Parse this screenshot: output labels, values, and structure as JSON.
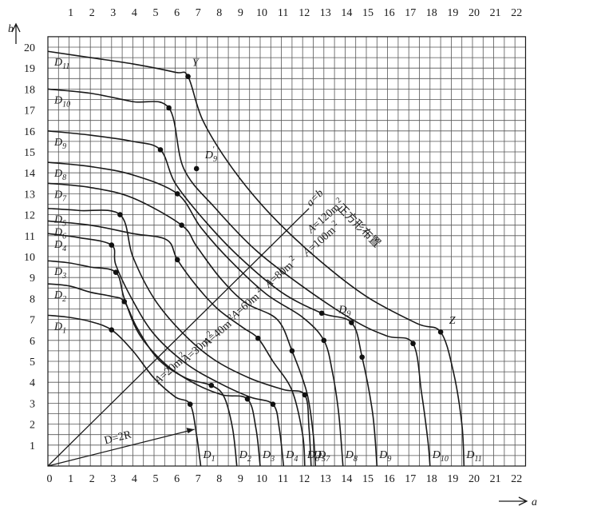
{
  "chart_data": {
    "type": "diagram",
    "x_axis": {
      "label": "a",
      "ticks": [
        "0",
        "1",
        "2",
        "3",
        "4",
        "5",
        "6",
        "7",
        "8",
        "9",
        "10",
        "11",
        "12",
        "13",
        "14",
        "15",
        "16",
        "17",
        "18",
        "19",
        "20",
        "21",
        "22"
      ]
    },
    "top_axis": {
      "ticks": [
        "1",
        "2",
        "3",
        "4",
        "5",
        "6",
        "7",
        "8",
        "9",
        "10",
        "11",
        "12",
        "13",
        "14",
        "15",
        "16",
        "17",
        "18",
        "19",
        "20",
        "21",
        "22"
      ]
    },
    "y_axis": {
      "label": "b",
      "ticks": [
        "1",
        "2",
        "3",
        "4",
        "5",
        "6",
        "7",
        "8",
        "9",
        "10",
        "11",
        "12",
        "13",
        "14",
        "15",
        "16",
        "17",
        "18",
        "19",
        "20"
      ]
    },
    "curves": [
      {
        "name": "D1",
        "sub": "1",
        "points": [
          [
            0,
            7.2
          ],
          [
            1,
            7.1
          ],
          [
            2,
            6.9
          ],
          [
            3,
            6.5
          ],
          [
            4,
            5.5
          ],
          [
            5,
            4.2
          ],
          [
            6,
            3.3
          ],
          [
            6.7,
            2.95
          ],
          [
            7,
            1.5
          ],
          [
            7.2,
            0
          ]
        ]
      },
      {
        "name": "D2",
        "sub": "2",
        "points": [
          [
            0,
            8.7
          ],
          [
            1,
            8.6
          ],
          [
            2,
            8.3
          ],
          [
            3,
            8.1
          ],
          [
            3.6,
            7.85
          ],
          [
            4.2,
            6.6
          ],
          [
            5.2,
            5.1
          ],
          [
            6.5,
            4.2
          ],
          [
            7.7,
            3.85
          ],
          [
            8.3,
            3.3
          ],
          [
            8.7,
            1.8
          ],
          [
            8.9,
            0
          ]
        ]
      },
      {
        "name": "D3",
        "sub": "3",
        "points": [
          [
            0,
            9.8
          ],
          [
            1,
            9.7
          ],
          [
            2,
            9.5
          ],
          [
            3.2,
            9.25
          ],
          [
            3.6,
            8.0
          ],
          [
            4.3,
            6.3
          ],
          [
            5.5,
            4.9
          ],
          [
            6.8,
            4.0
          ],
          [
            8.2,
            3.4
          ],
          [
            9.4,
            3.2
          ],
          [
            9.8,
            1.8
          ],
          [
            10,
            0
          ]
        ]
      },
      {
        "name": "D4",
        "sub": "4",
        "points": [
          [
            0,
            11.1
          ],
          [
            1.5,
            10.9
          ],
          [
            3,
            10.55
          ],
          [
            3.2,
            9.6
          ],
          [
            4.0,
            7.9
          ],
          [
            5.0,
            6.3
          ],
          [
            6.5,
            4.9
          ],
          [
            8.0,
            4.0
          ],
          [
            9.5,
            3.3
          ],
          [
            10.6,
            2.95
          ],
          [
            10.9,
            1.8
          ],
          [
            11.1,
            0
          ]
        ]
      },
      {
        "name": "D5",
        "sub": "5",
        "points": [
          [
            0,
            12.3
          ],
          [
            1.5,
            12.2
          ],
          [
            3.4,
            12.0
          ],
          [
            4.0,
            10.0
          ],
          [
            5.0,
            8.0
          ],
          [
            6.3,
            6.4
          ],
          [
            7.8,
            5.1
          ],
          [
            9.5,
            4.2
          ],
          [
            11.1,
            3.65
          ],
          [
            12.1,
            3.4
          ],
          [
            12.3,
            1.8
          ],
          [
            12.4,
            0
          ]
        ]
      },
      {
        "name": "D6",
        "sub": "6",
        "points": [
          [
            0,
            11.7
          ],
          [
            2,
            11.5
          ],
          [
            4,
            11.1
          ],
          [
            5.6,
            10.8
          ],
          [
            6.1,
            9.85
          ],
          [
            7.0,
            8.6
          ],
          [
            8.0,
            7.5
          ],
          [
            9.2,
            6.6
          ],
          [
            9.9,
            6.1
          ],
          [
            10.6,
            5.0
          ],
          [
            11.5,
            3.6
          ],
          [
            12.0,
            1.5
          ],
          [
            12.1,
            0
          ]
        ]
      },
      {
        "name": "D7",
        "sub": "7",
        "points": [
          [
            0,
            13.5
          ],
          [
            2,
            13.3
          ],
          [
            4,
            12.8
          ],
          [
            6.3,
            11.5
          ],
          [
            7.0,
            10.5
          ],
          [
            8.1,
            9.0
          ],
          [
            9.3,
            7.8
          ],
          [
            10.8,
            7.0
          ],
          [
            11.5,
            5.5
          ],
          [
            12.2,
            3.5
          ],
          [
            12.5,
            1.5
          ],
          [
            12.6,
            0
          ]
        ]
      },
      {
        "name": "D8",
        "sub": "8",
        "points": [
          [
            0,
            14.5
          ],
          [
            2,
            14.3
          ],
          [
            4,
            13.9
          ],
          [
            6.1,
            13.0
          ],
          [
            7.2,
            11.4
          ],
          [
            8.6,
            9.8
          ],
          [
            10.3,
            8.2
          ],
          [
            12.0,
            7.1
          ],
          [
            13.0,
            6.0
          ],
          [
            13.4,
            4.5
          ],
          [
            13.7,
            2.5
          ],
          [
            13.9,
            0
          ]
        ]
      },
      {
        "name": "D9",
        "sub": "9",
        "points": [
          [
            0,
            16.0
          ],
          [
            2,
            15.8
          ],
          [
            4,
            15.5
          ],
          [
            5.3,
            15.1
          ],
          [
            6.0,
            13.5
          ],
          [
            7.4,
            11.7
          ],
          [
            9.0,
            10.0
          ],
          [
            11.0,
            8.3
          ],
          [
            12.9,
            7.3
          ],
          [
            14.3,
            6.85
          ],
          [
            14.8,
            5.2
          ],
          [
            15.3,
            2.5
          ],
          [
            15.5,
            0
          ]
        ]
      },
      {
        "name": "D10",
        "sub": "10",
        "points": [
          [
            0,
            18.0
          ],
          [
            2,
            17.8
          ],
          [
            4,
            17.4
          ],
          [
            5.7,
            17.1
          ],
          [
            6.4,
            14.2
          ],
          [
            7.9,
            12.3
          ],
          [
            9.8,
            10.3
          ],
          [
            12.1,
            8.5
          ],
          [
            14.5,
            6.9
          ],
          [
            16.0,
            6.2
          ],
          [
            17.2,
            5.85
          ],
          [
            17.6,
            3.5
          ],
          [
            17.9,
            1.2
          ],
          [
            18.0,
            0
          ]
        ]
      },
      {
        "name": "D11",
        "sub": "11",
        "points": [
          [
            0,
            19.8
          ],
          [
            2,
            19.5
          ],
          [
            4,
            19.2
          ],
          [
            6.0,
            18.8
          ],
          [
            6.6,
            18.6
          ],
          [
            7.3,
            16.5
          ],
          [
            8.7,
            14.2
          ],
          [
            10.5,
            12.0
          ],
          [
            12.7,
            9.9
          ],
          [
            15.0,
            8.1
          ],
          [
            17.4,
            6.8
          ],
          [
            18.5,
            6.4
          ],
          [
            19.1,
            4.5
          ],
          [
            19.5,
            2.0
          ],
          [
            19.6,
            0
          ]
        ]
      }
    ],
    "markers": [
      [
        3,
        6.5
      ],
      [
        6.7,
        2.95
      ],
      [
        3.6,
        7.85
      ],
      [
        7.7,
        3.85
      ],
      [
        3.2,
        9.25
      ],
      [
        9.4,
        3.2
      ],
      [
        3.0,
        10.55
      ],
      [
        10.6,
        2.95
      ],
      [
        3.4,
        12.0
      ],
      [
        12.1,
        3.4
      ],
      [
        6.1,
        9.85
      ],
      [
        9.9,
        6.1
      ],
      [
        6.3,
        11.5
      ],
      [
        11.5,
        5.5
      ],
      [
        6.1,
        13.0
      ],
      [
        13.0,
        6.0
      ],
      [
        5.3,
        15.1
      ],
      [
        14.3,
        6.85
      ],
      [
        5.7,
        17.1
      ],
      [
        17.2,
        5.85
      ],
      [
        6.6,
        18.6
      ],
      [
        18.5,
        6.4
      ],
      [
        7.0,
        14.2
      ],
      [
        12.9,
        7.3
      ],
      [
        14.8,
        5.2
      ]
    ],
    "diagonal": {
      "label": "a=b",
      "to": [
        12.3,
        12.3
      ]
    },
    "radius_arrow": {
      "label": "D=2R",
      "to": [
        6.9,
        1.75
      ]
    },
    "area_labels": [
      {
        "text": "A=20m",
        "sup": "2",
        "at": [
          5.2,
          3.9
        ]
      },
      {
        "text": "A=30m",
        "sup": "2",
        "at": [
          6.5,
          4.9
        ]
      },
      {
        "text": "A=40m",
        "sup": "2",
        "at": [
          7.5,
          5.7
        ]
      },
      {
        "text": "A=60m",
        "sup": "2",
        "at": [
          8.8,
          7.0
        ]
      },
      {
        "text": "A=80m",
        "sup": "2",
        "at": [
          10.4,
          8.5
        ]
      },
      {
        "text": "A=100m",
        "sup": "2",
        "at": [
          12.2,
          10.0
        ]
      },
      {
        "text": "A=120m",
        "sup": "2",
        "at": [
          12.4,
          11.1
        ]
      }
    ],
    "square_layout_label": "正方形布置",
    "point_labels": [
      {
        "text": "Y",
        "at": [
          6.8,
          19.1
        ]
      },
      {
        "text": "Z",
        "at": [
          18.9,
          6.8
        ]
      },
      {
        "text": "D",
        "sub": "9",
        "prime": true,
        "at": [
          7.4,
          14.7
        ]
      },
      {
        "text": "D",
        "sub": "9",
        "at": [
          13.7,
          7.3
        ]
      }
    ]
  }
}
